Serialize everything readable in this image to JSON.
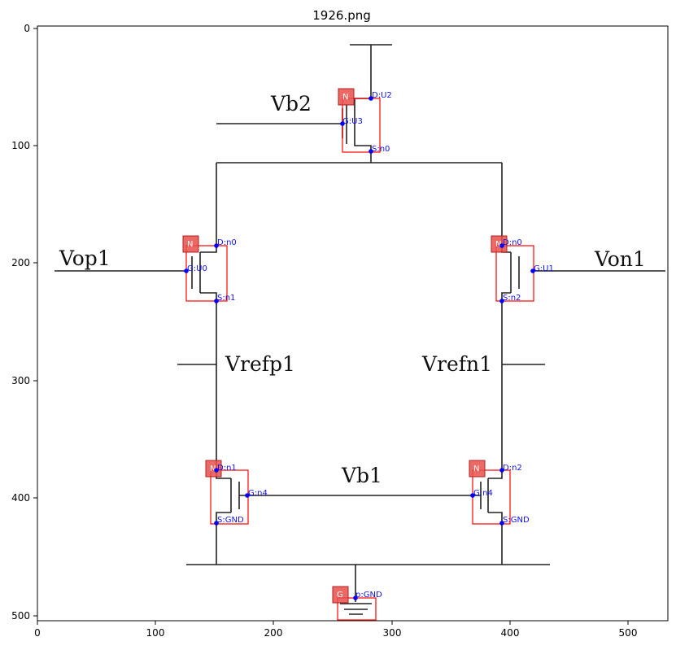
{
  "title": "1926.png",
  "axes": {
    "x_ticks": [
      "0",
      "100",
      "200",
      "300",
      "400",
      "500"
    ],
    "y_ticks": [
      "0",
      "100",
      "200",
      "300",
      "400",
      "500"
    ]
  },
  "net_labels": {
    "vb2": "Vb2",
    "vop1": "Vop1",
    "von1": "Von1",
    "vrefp1": "Vrefp1",
    "vrefn1": "Vrefn1",
    "vb1": "Vb1"
  },
  "components": [
    {
      "id": "m-top",
      "type": "N",
      "pins": {
        "d": "D:U2",
        "g": "G:U3",
        "s": "S:n0"
      }
    },
    {
      "id": "m-left",
      "type": "N",
      "pins": {
        "d": "D:n0",
        "g": "G:U0",
        "s": "S:n1"
      }
    },
    {
      "id": "m-right",
      "type": "N",
      "pins": {
        "d": "D:n0",
        "g": "G:U1",
        "s": "S:n2"
      }
    },
    {
      "id": "m-bl",
      "type": "N",
      "pins": {
        "d": "D:n1",
        "g": "G:n4",
        "s": "S:GND"
      }
    },
    {
      "id": "m-br",
      "type": "N",
      "pins": {
        "d": "D:n2",
        "g": "G:n4",
        "s": "S:GND"
      }
    },
    {
      "id": "gnd",
      "type": "G",
      "pins": {
        "p": "p:GND"
      }
    }
  ],
  "colors": {
    "bbox": "#ff0000",
    "badge": "#e8504a",
    "pin_text": "#1010ff"
  }
}
